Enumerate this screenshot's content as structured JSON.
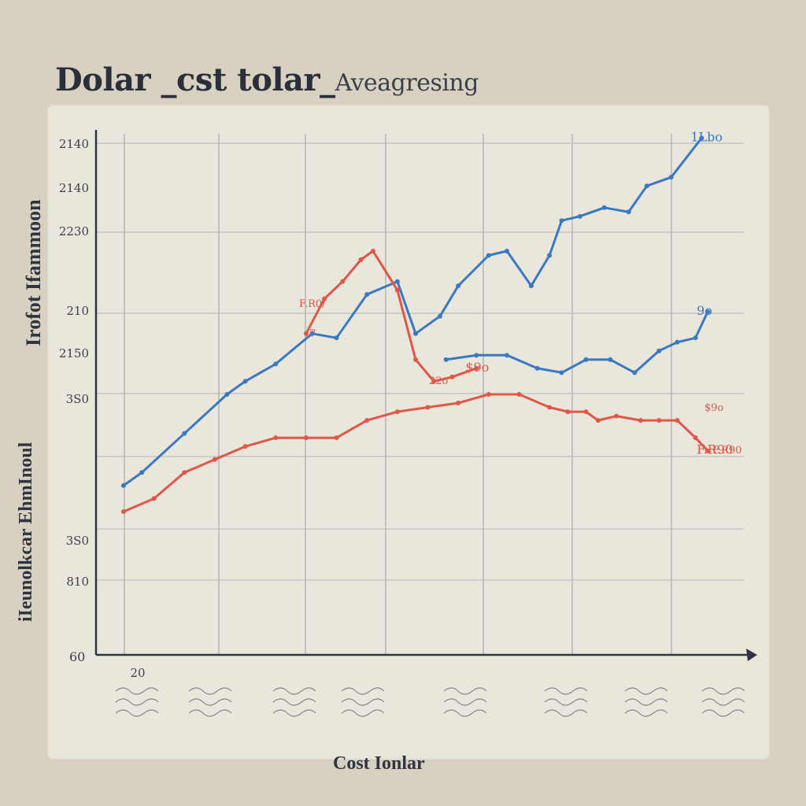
{
  "title": "Dolar _cst tolar_",
  "subtitle": "Aveagresing",
  "xlabel": "Cost Ionlar",
  "ylabel_upper": "Irofot Ifammoon",
  "ylabel_lower": "iIeunolkcar EhmInoul",
  "chart_data": {
    "type": "line",
    "title": "Dolar _cst tolar_Aveagresing",
    "xlabel": "Cost Ionlar",
    "ylabel": "",
    "yticks": [
      "2140",
      "2140",
      "2230",
      "210",
      "2150",
      "3S0",
      "3S0",
      "810"
    ],
    "y_axis_end_label": "60",
    "xticks": [
      "20",
      "",
      "",
      "",
      "",
      "",
      "",
      ""
    ],
    "ylim": [
      0,
      12
    ],
    "xlim": [
      0,
      10
    ],
    "grid": true,
    "series": [
      {
        "color": "#3a78c2",
        "end_label": "1Lbo",
        "x": [
          0.0,
          0.3,
          1.0,
          1.7,
          2.0,
          2.5,
          3.1,
          3.5,
          4.0,
          4.5,
          4.8,
          5.2,
          5.5,
          6.0,
          6.3,
          6.7,
          7.0,
          7.2,
          7.5,
          7.9,
          8.3,
          8.6,
          9.0,
          9.5
        ],
        "values": [
          3.9,
          4.2,
          5.1,
          6.0,
          6.3,
          6.7,
          7.4,
          7.3,
          8.3,
          8.6,
          7.4,
          7.8,
          8.5,
          9.2,
          9.3,
          8.5,
          9.2,
          10.0,
          10.1,
          10.3,
          10.2,
          10.8,
          11.0,
          11.9
        ]
      },
      {
        "color": "#3a78c2",
        "end_label": "9o",
        "x": [
          5.3,
          5.8,
          6.3,
          6.8,
          7.2,
          7.6,
          8.0,
          8.4,
          8.8,
          9.1,
          9.4,
          9.6
        ],
        "values": [
          6.8,
          6.9,
          6.9,
          6.6,
          6.5,
          6.8,
          6.8,
          6.5,
          7.0,
          7.2,
          7.3,
          7.9
        ]
      },
      {
        "color": "#e0574a",
        "end_label": "F.R90",
        "x": [
          0.0,
          0.5,
          1.0,
          1.5,
          2.0,
          2.5,
          3.0,
          3.5,
          4.0,
          4.5,
          5.0,
          5.5,
          6.0,
          6.5,
          7.0,
          7.3,
          7.6,
          7.8,
          8.1,
          8.5,
          8.8,
          9.1,
          9.4,
          9.6
        ],
        "values": [
          3.3,
          3.6,
          4.2,
          4.5,
          4.8,
          5.0,
          5.0,
          5.0,
          5.4,
          5.6,
          5.7,
          5.8,
          6.0,
          6.0,
          5.7,
          5.6,
          5.6,
          5.4,
          5.5,
          5.4,
          5.4,
          5.4,
          5.0,
          4.7
        ]
      },
      {
        "color": "#e0574a",
        "end_label": "$9o",
        "x": [
          3.0,
          3.3,
          3.6,
          3.9,
          4.1,
          4.5,
          4.8,
          5.1,
          5.4,
          5.8
        ],
        "values": [
          7.4,
          8.2,
          8.6,
          9.1,
          9.3,
          8.4,
          6.8,
          6.3,
          6.4,
          6.6
        ]
      }
    ],
    "annotations": [
      "F.R0/",
      "(7",
      "22o",
      "$9o",
      "F.R90"
    ]
  }
}
